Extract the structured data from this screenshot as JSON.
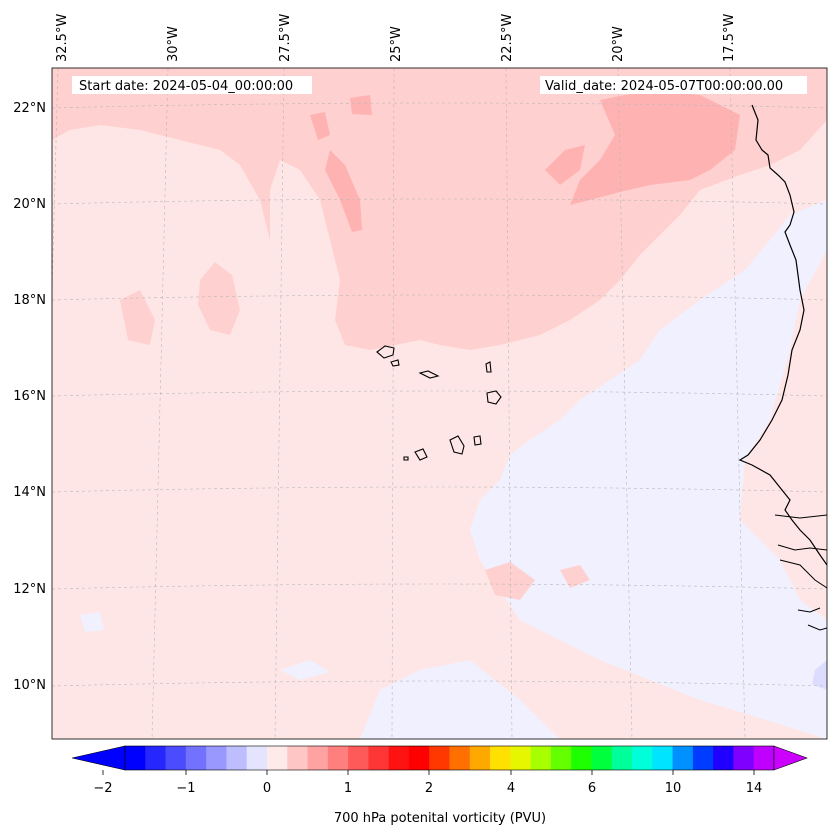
{
  "header": {
    "start_date": "Start date: 2024-05-04_00:00:00",
    "valid_date": "Valid_date: 2024-05-07T00:00:00.00"
  },
  "axes": {
    "lon_labels": [
      "32.5°W",
      "30°W",
      "27.5°W",
      "25°W",
      "22.5°W",
      "20°W",
      "17.5°W"
    ],
    "lat_labels": [
      "22°N",
      "20°N",
      "18°N",
      "16°N",
      "14°N",
      "12°N",
      "10°N"
    ]
  },
  "colorbar": {
    "title": "700 hPa potenital vorticity (PVU)",
    "tick_labels": [
      "−2",
      "−1",
      "0",
      "1",
      "2",
      "4",
      "6",
      "10",
      "14"
    ],
    "colors": [
      "#0000ff",
      "#2626ff",
      "#4c4cff",
      "#7272ff",
      "#9898ff",
      "#bebeff",
      "#e4e4ff",
      "#ffeaea",
      "#ffc6c6",
      "#ffa2a2",
      "#ff7e7e",
      "#ff5a5a",
      "#ff3636",
      "#ff1212",
      "#ff0000",
      "#ff3800",
      "#ff7000",
      "#ffa800",
      "#ffe000",
      "#e6f500",
      "#a8ff00",
      "#64ff00",
      "#1eff00",
      "#00ff3c",
      "#00ff9a",
      "#00ffd8",
      "#00e4ff",
      "#0090ff",
      "#003cff",
      "#2000ff",
      "#8000ff",
      "#c000ff"
    ],
    "under_color": "#0000ff",
    "over_color": "#cc00ff"
  },
  "field_colors": {
    "background": "#ffe6e6",
    "light_red": "#ffd0d0",
    "mid_red": "#ffb2b2",
    "light_blue": "#f0f0ff",
    "blue": "#dcdcff"
  }
}
